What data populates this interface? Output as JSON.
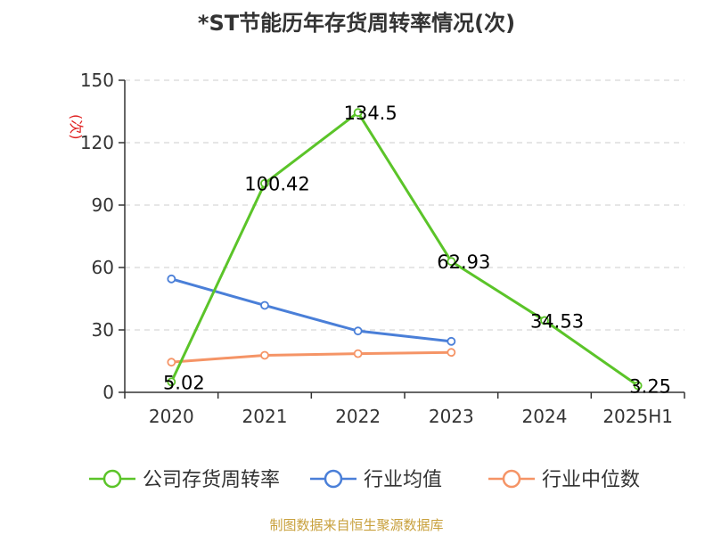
{
  "chart_data": {
    "type": "line",
    "title": "*ST节能历年存货周转率情况(次)",
    "ylabel": "(次)",
    "categories": [
      "2020",
      "2021",
      "2022",
      "2023",
      "2024",
      "2025H1"
    ],
    "ylim": [
      0,
      150
    ],
    "yticks": [
      "0",
      "30",
      "60",
      "90",
      "120",
      "150"
    ],
    "grid": true,
    "legend_position": "bottom",
    "series": [
      {
        "name": "公司存货周转率",
        "color": "#5bc429",
        "values": [
          5.02,
          100.42,
          134.5,
          62.93,
          34.53,
          3.25
        ],
        "labels": [
          "5.02",
          "100.42",
          "134.5",
          "62.93",
          "34.53",
          "3.25"
        ]
      },
      {
        "name": "行业均值",
        "color": "#4a7fd8",
        "values": [
          54.5,
          41.8,
          29.5,
          24.5,
          null,
          null
        ]
      },
      {
        "name": "行业中位数",
        "color": "#f59466",
        "values": [
          14.5,
          17.8,
          18.6,
          19.2,
          null,
          null
        ]
      }
    ]
  },
  "source": "制图数据来自恒生聚源数据库"
}
